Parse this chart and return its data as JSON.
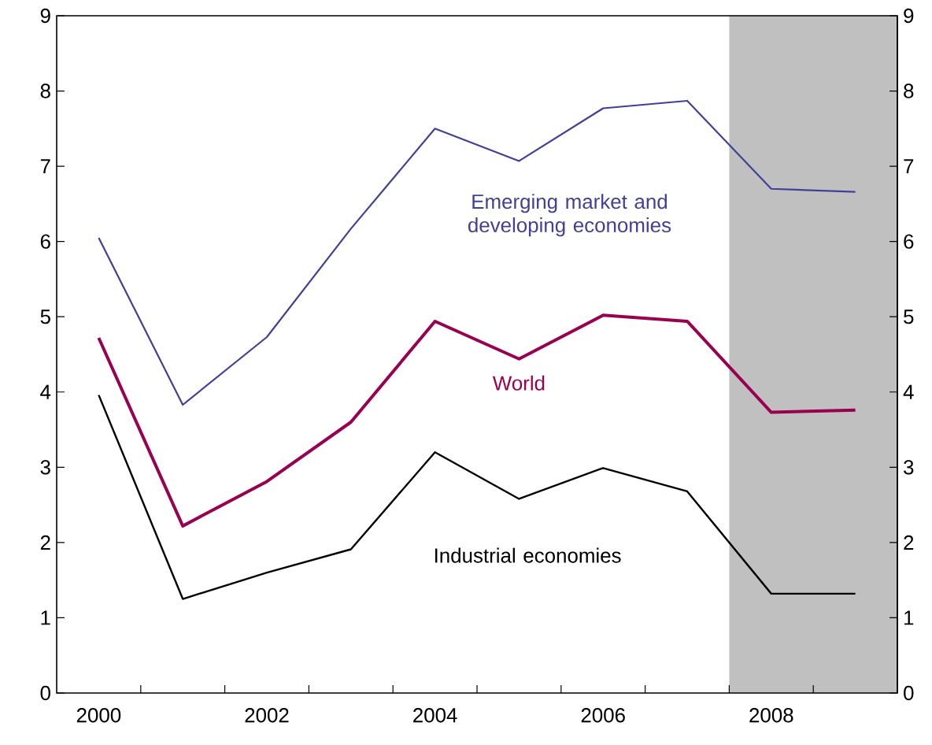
{
  "chart_data": {
    "type": "line",
    "x": [
      2000,
      2001,
      2002,
      2003,
      2004,
      2005,
      2006,
      2007,
      2008,
      2009
    ],
    "series": [
      {
        "name": "Emerging market and developing economies",
        "color": "#40409a",
        "values": [
          6.05,
          3.83,
          4.73,
          6.17,
          7.5,
          7.07,
          7.77,
          7.87,
          6.7,
          6.66
        ]
      },
      {
        "name": "World",
        "color": "#990050",
        "values": [
          4.72,
          2.22,
          2.81,
          3.6,
          4.94,
          4.44,
          5.02,
          4.94,
          3.73,
          3.76
        ]
      },
      {
        "name": "Industrial economies",
        "color": "#000000",
        "values": [
          3.96,
          1.25,
          1.6,
          1.91,
          3.2,
          2.58,
          2.99,
          2.68,
          1.32,
          1.32
        ]
      }
    ],
    "xlim": [
      1999.5,
      2009.5
    ],
    "xticks": [
      {
        "value": 2000,
        "label": "2000"
      },
      {
        "value": 2000.5,
        "label": null
      },
      {
        "value": 2001.5,
        "label": null
      },
      {
        "value": 2002,
        "label": "2002"
      },
      {
        "value": 2002.5,
        "label": null
      },
      {
        "value": 2003.5,
        "label": null
      },
      {
        "value": 2004,
        "label": "2004"
      },
      {
        "value": 2004.5,
        "label": null
      },
      {
        "value": 2005.5,
        "label": null
      },
      {
        "value": 2006,
        "label": "2006"
      },
      {
        "value": 2006.5,
        "label": null
      },
      {
        "value": 2007.5,
        "label": null
      },
      {
        "value": 2008,
        "label": "2008"
      },
      {
        "value": 2008.5,
        "label": null
      }
    ],
    "ylim": [
      0,
      9
    ],
    "yticks": [
      0,
      1,
      2,
      3,
      4,
      5,
      6,
      7,
      8,
      9
    ],
    "y2lim": [
      0,
      9
    ],
    "y2ticks": [
      0,
      1,
      2,
      3,
      4,
      5,
      6,
      7,
      8,
      9
    ],
    "bands": [
      {
        "axis": "x",
        "from": 2007.5,
        "to": 2009.5,
        "color": "#c0c0c0"
      }
    ]
  }
}
